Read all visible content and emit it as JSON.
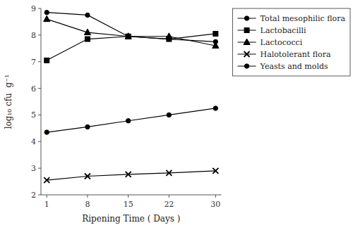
{
  "chart_data": {
    "type": "line",
    "xlabel": "Ripening Time ( Days )",
    "ylabel": "log₁₀ cfu  g⁻¹",
    "x": [
      1,
      8,
      15,
      22,
      30
    ],
    "xlim": [
      0,
      31
    ],
    "xticks": [
      1,
      8,
      15,
      22,
      30
    ],
    "ylim": [
      2,
      9
    ],
    "yticks": [
      2,
      3,
      4,
      5,
      6,
      7,
      8,
      9
    ],
    "grid": false,
    "legend": "right",
    "series": [
      {
        "name": "Total mesophilic flora",
        "color": "#000000",
        "marker": "circle",
        "values": [
          8.85,
          8.75,
          7.95,
          7.85,
          7.75
        ]
      },
      {
        "name": "Lactobacilli",
        "color": "#000000",
        "marker": "square",
        "values": [
          7.05,
          7.85,
          7.95,
          7.85,
          8.05
        ]
      },
      {
        "name": "Lactococci",
        "color": "#000000",
        "marker": "triangle",
        "values": [
          8.6,
          8.1,
          7.95,
          7.95,
          7.6
        ]
      },
      {
        "name": "Halotolerant flora",
        "color": "#000000",
        "marker": "x",
        "values": [
          2.55,
          2.7,
          2.77,
          2.82,
          2.9
        ]
      },
      {
        "name": "Yeasts and molds",
        "color": "#000000",
        "marker": "circle",
        "values": [
          4.35,
          4.55,
          4.78,
          5.0,
          5.25
        ]
      }
    ]
  }
}
